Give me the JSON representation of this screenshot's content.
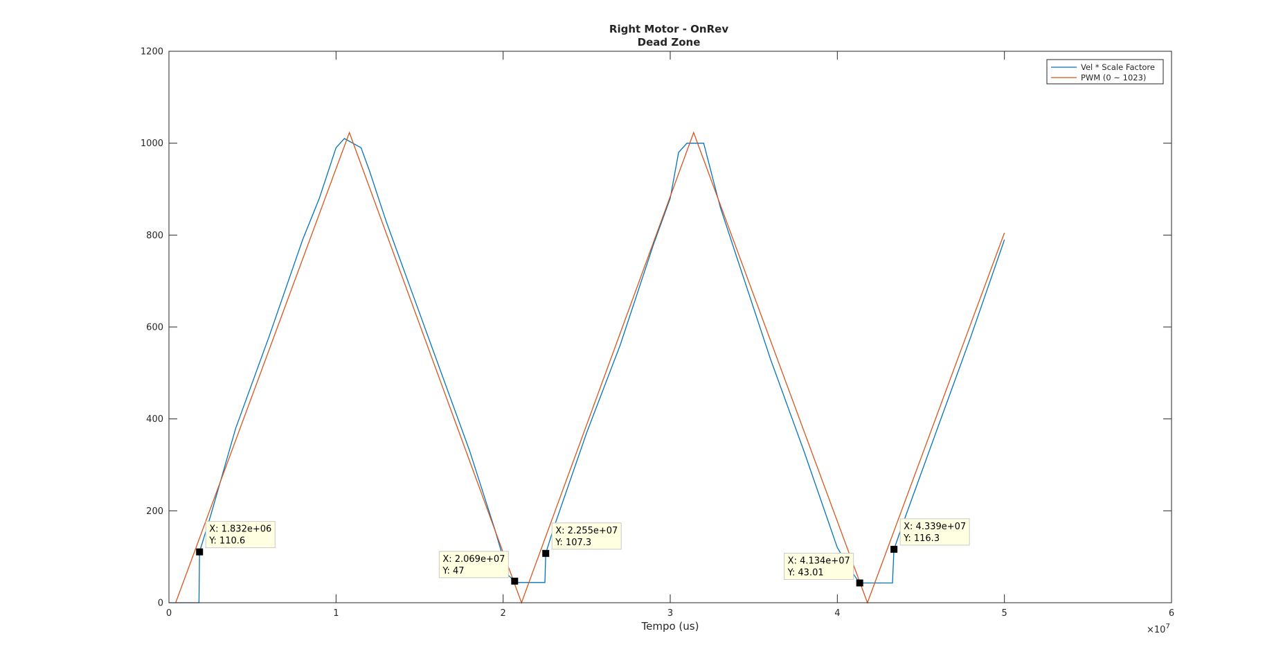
{
  "chart_data": {
    "type": "line",
    "title": "Right Motor - OnRev",
    "subtitle": "Dead Zone",
    "xlabel": "Tempo (us)",
    "ylabel": "",
    "x_exponent_label": "×10",
    "x_exponent_power": "7",
    "xlim": [
      0,
      6
    ],
    "ylim": [
      0,
      1200
    ],
    "x_ticks": [
      0,
      1,
      2,
      3,
      4,
      5,
      6
    ],
    "x_tick_labels": [
      "0",
      "1",
      "2",
      "3",
      "4",
      "5",
      "6"
    ],
    "y_ticks": [
      0,
      200,
      400,
      600,
      800,
      1000,
      1200
    ],
    "y_tick_labels": [
      "0",
      "200",
      "400",
      "600",
      "800",
      "1000",
      "1200"
    ],
    "grid": false,
    "legend_position": "top-right",
    "series": [
      {
        "name": "Vel * Scale Factore",
        "color": "#0072BD",
        "x": [
          0,
          0.18,
          0.183,
          0.25,
          0.4,
          0.6,
          0.8,
          0.9,
          1.0,
          1.05,
          1.1,
          1.15,
          1.2,
          1.3,
          1.4,
          1.6,
          1.8,
          1.95,
          2.03,
          2.069,
          2.07,
          2.2,
          2.25,
          2.255,
          2.3,
          2.5,
          2.7,
          2.9,
          3.0,
          3.05,
          3.1,
          3.15,
          3.2,
          3.25,
          3.3,
          3.4,
          3.6,
          3.8,
          4.0,
          4.1,
          4.134,
          4.135,
          4.3,
          4.33,
          4.339,
          4.4,
          4.6,
          4.8,
          5.0
        ],
        "y": [
          0,
          0,
          110.6,
          190,
          380,
          580,
          790,
          880,
          990,
          1010,
          1000,
          990,
          940,
          830,
          730,
          530,
          330,
          160,
          60,
          47,
          44,
          44,
          44,
          107.3,
          160,
          370,
          560,
          780,
          880,
          980,
          1000,
          1000,
          1000,
          930,
          860,
          750,
          530,
          330,
          120,
          60,
          43.01,
          43,
          43,
          43,
          116.3,
          180,
          380,
          580,
          790
        ]
      },
      {
        "name": "PWM (0 ~ 1023)",
        "color": "#D95319",
        "x": [
          0.04,
          1.08,
          2.11,
          3.14,
          4.18,
          5.0
        ],
        "y": [
          0,
          1023,
          0,
          1023,
          0,
          805
        ]
      }
    ],
    "annotations": [
      {
        "x_label": "X: 1.832e+06",
        "y_label": "Y: 110.6",
        "x": 0.1832,
        "y": 110.6,
        "box": "right"
      },
      {
        "x_label": "X: 2.069e+07",
        "y_label": "Y: 47",
        "x": 2.069,
        "y": 47,
        "box": "left"
      },
      {
        "x_label": "X: 2.255e+07",
        "y_label": "Y: 107.3",
        "x": 2.255,
        "y": 107.3,
        "box": "right"
      },
      {
        "x_label": "X: 4.134e+07",
        "y_label": "Y: 43.01",
        "x": 4.134,
        "y": 43.01,
        "box": "left"
      },
      {
        "x_label": "X: 4.339e+07",
        "y_label": "Y: 116.3",
        "x": 4.339,
        "y": 116.3,
        "box": "right"
      }
    ]
  }
}
